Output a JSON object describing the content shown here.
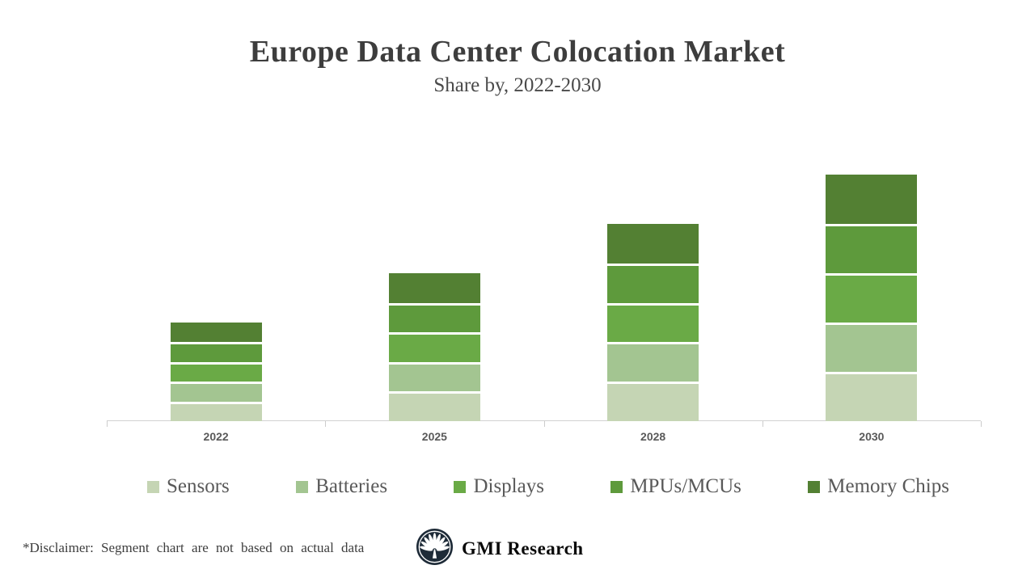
{
  "title": "Europe Data Center Colocation Market",
  "subtitle": "Share by, 2022-2030",
  "footer": {
    "disclaimer": "*Disclaimer:  Segment chart are not based on actual data",
    "brand": "GMI Research"
  },
  "colors": {
    "title_text": "#3d3d3d",
    "axis_line": "#d2d2d2",
    "x_label": "#595959",
    "legend_text": "#595959",
    "logo_navy": "#1e2b38"
  },
  "chart_data": {
    "type": "bar",
    "stacked": true,
    "title": "Europe Data Center Colocation Market",
    "subtitle": "Share by, 2022-2030",
    "categories": [
      "2022",
      "2025",
      "2028",
      "2030"
    ],
    "series": [
      {
        "name": "Sensors",
        "color": "#c5d5b4",
        "values": [
          4,
          6,
          8,
          10
        ]
      },
      {
        "name": "Batteries",
        "color": "#a3c591",
        "values": [
          4,
          6,
          8,
          10
        ]
      },
      {
        "name": "Displays",
        "color": "#6aaa46",
        "values": [
          4,
          6,
          8,
          10
        ]
      },
      {
        "name": "MPUs/MCUs",
        "color": "#5e9a3c",
        "values": [
          4,
          6,
          8,
          10
        ]
      },
      {
        "name": "Memory Chips",
        "color": "#538033",
        "values": [
          4,
          6,
          8,
          10
        ]
      }
    ],
    "xlabel": "",
    "ylabel": "",
    "ylim": [
      0,
      55
    ],
    "y_axis_visible": false,
    "grid": false,
    "legend_position": "bottom"
  }
}
